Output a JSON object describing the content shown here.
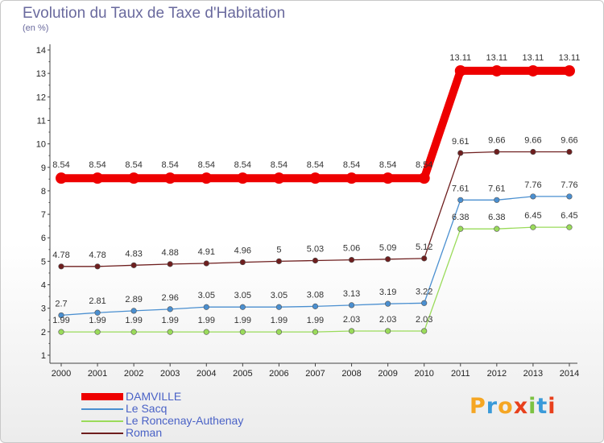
{
  "header": {
    "title": "Evolution du Taux de Taxe d'Habitation",
    "subtitle": "(en %)"
  },
  "logo": {
    "text": "Proxiti",
    "colors": [
      "#f5a623",
      "#3a9ad9",
      "#f5a623",
      "#e8401c",
      "#7cc242",
      "#3a9ad9",
      "#e8401c"
    ]
  },
  "chart_data": {
    "type": "line",
    "x": [
      "2000",
      "2001",
      "2002",
      "2003",
      "2004",
      "2005",
      "2006",
      "2007",
      "2008",
      "2009",
      "2010",
      "2011",
      "2012",
      "2013",
      "2014"
    ],
    "ylim": [
      1,
      14
    ],
    "yticks": [
      1,
      2,
      3,
      4,
      5,
      6,
      7,
      8,
      9,
      10,
      11,
      12,
      13,
      14
    ],
    "grid": false,
    "legend_position": "bottom-left",
    "series": [
      {
        "name": "DAMVILLE",
        "color": "#ee0000",
        "emphasis": true,
        "values": [
          8.54,
          8.54,
          8.54,
          8.54,
          8.54,
          8.54,
          8.54,
          8.54,
          8.54,
          8.54,
          8.54,
          13.11,
          13.11,
          13.11,
          13.11
        ],
        "labels": [
          "8.54",
          "8.54",
          "8.54",
          "8.54",
          "8.54",
          "8.54",
          "8.54",
          "8.54",
          "8.54",
          "8.54",
          "8.54",
          "13.11",
          "13.11",
          "13.11",
          "13.11"
        ]
      },
      {
        "name": "Le Sacq",
        "color": "#4a8fd0",
        "marker_fill": "#4a8fd0",
        "values": [
          2.7,
          2.81,
          2.89,
          2.96,
          3.05,
          3.05,
          3.05,
          3.08,
          3.13,
          3.19,
          3.22,
          7.61,
          7.61,
          7.76,
          7.76
        ],
        "labels": [
          "2.7",
          "2.81",
          "2.89",
          "2.96",
          "3.05",
          "3.05",
          "3.05",
          "3.08",
          "3.13",
          "3.19",
          "3.22",
          "7.61",
          "7.61",
          "7.76",
          "7.76"
        ]
      },
      {
        "name": "Le Roncenay-Authenay",
        "color": "#9adb5a",
        "marker_fill": "#9adb5a",
        "values": [
          1.99,
          1.99,
          1.99,
          1.99,
          1.99,
          1.99,
          1.99,
          1.99,
          2.03,
          2.03,
          2.03,
          6.38,
          6.38,
          6.45,
          6.45
        ],
        "labels": [
          "1.99",
          "1.99",
          "1.99",
          "1.99",
          "1.99",
          "1.99",
          "1.99",
          "1.99",
          "2.03",
          "2.03",
          "2.03",
          "6.38",
          "6.38",
          "6.45",
          "6.45"
        ]
      },
      {
        "name": "Roman",
        "color": "#6e1e1e",
        "marker_fill": "#6e1e1e",
        "values": [
          4.78,
          4.78,
          4.83,
          4.88,
          4.91,
          4.96,
          5,
          5.03,
          5.06,
          5.09,
          5.12,
          9.61,
          9.66,
          9.66,
          9.66
        ],
        "labels": [
          "4.78",
          "4.78",
          "4.83",
          "4.88",
          "4.91",
          "4.96",
          "5",
          "5.03",
          "5.06",
          "5.09",
          "5.12",
          "9.61",
          "9.66",
          "9.66",
          "9.66"
        ]
      }
    ]
  }
}
